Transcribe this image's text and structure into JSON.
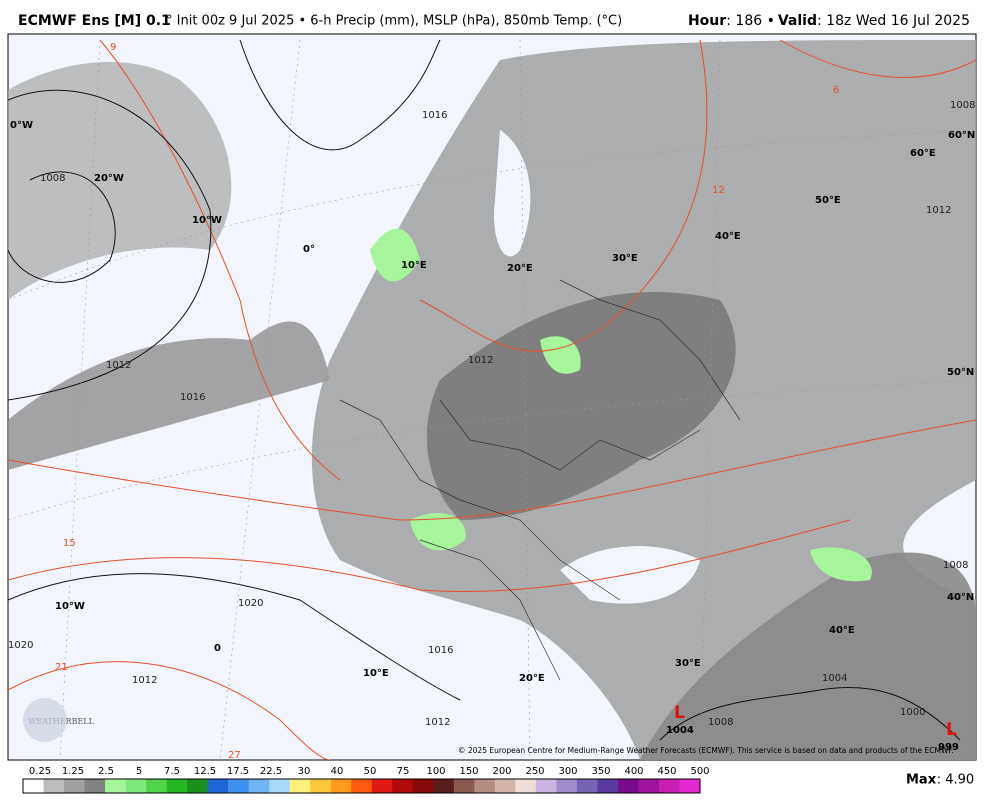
{
  "header": {
    "title": "ECMWF Ens [M] 0.1",
    "subtitle": "° Init 00z 9 Jul 2025 • 6-h Precip (mm), MSLP (hPa), 850mb Temp. (°C)",
    "hour_label": "Hour",
    "hour": ": 186 • ",
    "valid_label": "Valid",
    "valid": ": 18z Wed 16 Jul 2025"
  },
  "map": {
    "grid_labels": [
      "0°W",
      "20°W",
      "10°W",
      "0°",
      "10°E",
      "20°E",
      "30°E",
      "40°E",
      "50°E",
      "60°E",
      "60°N",
      "50°N",
      "40°N",
      "10°W",
      "0",
      "10°E",
      "20°E",
      "30°E",
      "40°E"
    ],
    "isobar_labels": [
      "1008",
      "1012",
      "1016",
      "1016",
      "1012",
      "1020",
      "1020",
      "1016",
      "1012",
      "1012",
      "1008",
      "1012",
      "1008",
      "1000",
      "1008",
      "1004"
    ],
    "temperature_labels": [
      "9",
      "6",
      "12",
      "15",
      "21",
      "27"
    ],
    "low_centers": [
      "L",
      "L"
    ],
    "low_pressures": [
      "1004",
      "999"
    ],
    "logo": "WEATHERBELL",
    "copyright": "© 2025 European Centre for Medium-Range Weather Forecasts (ECMWF). This service is based on data and products of the ECMWF."
  },
  "colorbar": {
    "labels": [
      "0.25",
      "1.25",
      "2.5",
      "5",
      "7.5",
      "12.5",
      "17.5",
      "22.5",
      "30",
      "40",
      "50",
      "75",
      "100",
      "150",
      "200",
      "250",
      "300",
      "350",
      "400",
      "450",
      "500"
    ],
    "colors": [
      "#ffffff",
      "#bdbdbd",
      "#a0a0a0",
      "#828282",
      "#a6f59a",
      "#7fe87a",
      "#4fd44a",
      "#25b825",
      "#1a8f1a",
      "#2166d9",
      "#3f8ff0",
      "#6fb4f5",
      "#a8d8f8",
      "#fff07a",
      "#ffc83c",
      "#ff9a1e",
      "#ff5a14",
      "#e01a14",
      "#b00a0a",
      "#8a0a0a",
      "#5a1e1e",
      "#8a5a50",
      "#b48c82",
      "#d2b4aa",
      "#eedcd7",
      "#c8b4dc",
      "#a08cc8",
      "#7864b4",
      "#5a3ca0",
      "#780a8c",
      "#a0149b",
      "#c81eb4",
      "#e628d2"
    ],
    "max_label": "Max",
    "max_value": ": 4.90"
  }
}
